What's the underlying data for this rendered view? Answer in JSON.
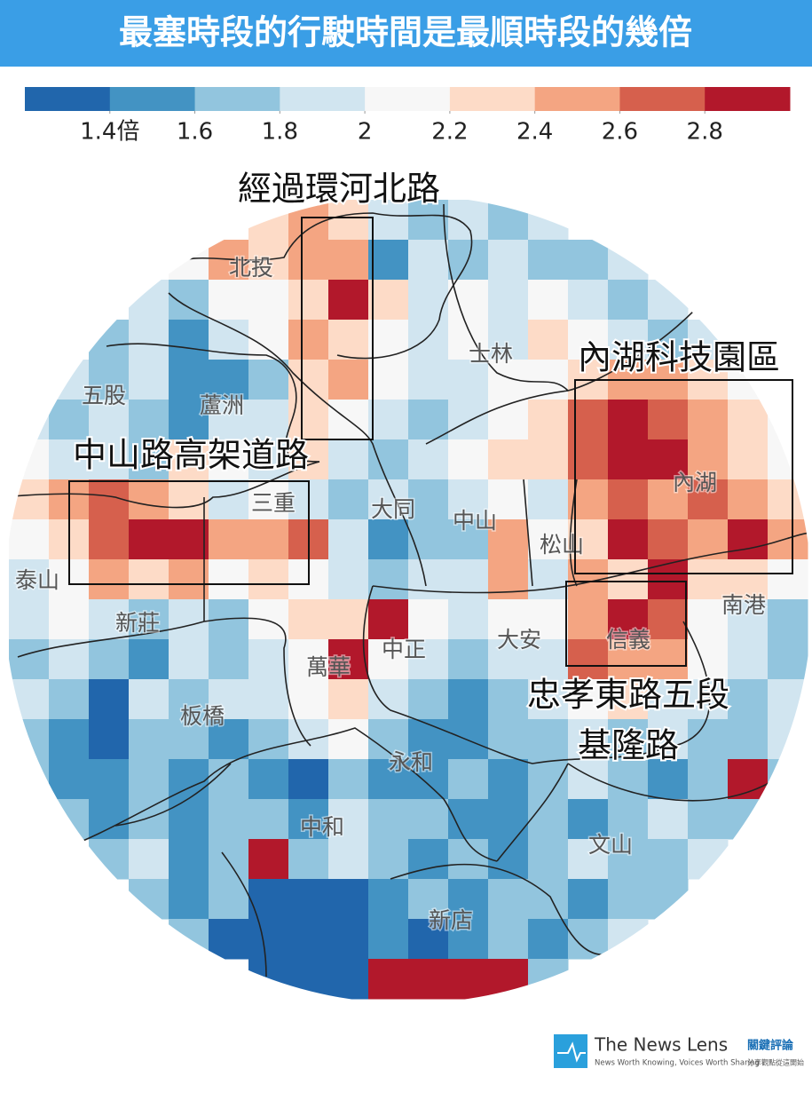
{
  "title": "最塞時段的行駛時間是最順時段的幾倍",
  "legend": {
    "colors": [
      "#2166ac",
      "#4393c3",
      "#92c5de",
      "#d1e5f0",
      "#f7f7f7",
      "#fddbc7",
      "#f4a582",
      "#d6604d",
      "#b2182b"
    ],
    "ticks": [
      {
        "value": 1.4,
        "label": "1.4倍"
      },
      1.6,
      1.8,
      2,
      2.2,
      2.4,
      2.6,
      2.8
    ]
  },
  "map": {
    "rows": [
      [
        null,
        null,
        null,
        null,
        null,
        null,
        2.3,
        2.5,
        2.3,
        1.9,
        1.7,
        1.9,
        1.7,
        1.9,
        null,
        null,
        null,
        null,
        null,
        null
      ],
      [
        null,
        null,
        null,
        null,
        2.1,
        2.5,
        2.3,
        2.5,
        2.5,
        1.5,
        1.9,
        1.7,
        1.9,
        1.7,
        1.7,
        1.9,
        null,
        null,
        null,
        null
      ],
      [
        null,
        null,
        null,
        1.9,
        1.7,
        2.1,
        2.1,
        2.3,
        2.9,
        2.3,
        1.9,
        2.1,
        1.9,
        2.1,
        1.9,
        1.7,
        1.9,
        null,
        null,
        null
      ],
      [
        null,
        null,
        1.7,
        1.9,
        1.5,
        1.9,
        2.1,
        2.5,
        2.3,
        2.1,
        1.9,
        2.1,
        1.9,
        2.3,
        2.1,
        1.9,
        1.7,
        1.9,
        null,
        null
      ],
      [
        null,
        1.9,
        1.7,
        1.9,
        1.5,
        1.5,
        1.7,
        2.3,
        2.5,
        2.1,
        1.9,
        1.9,
        2.1,
        2.1,
        2.3,
        2.5,
        2.5,
        2.3,
        2.1,
        null
      ],
      [
        1.9,
        1.7,
        1.9,
        1.7,
        1.5,
        1.9,
        1.9,
        2.3,
        2.1,
        1.9,
        1.7,
        1.9,
        2.1,
        2.3,
        2.7,
        2.9,
        2.7,
        2.5,
        2.3,
        2.1
      ],
      [
        2.1,
        1.9,
        1.9,
        1.7,
        2.3,
        2.1,
        1.9,
        2.3,
        1.9,
        1.7,
        1.9,
        2.1,
        2.3,
        2.3,
        2.7,
        2.9,
        2.9,
        2.5,
        2.3,
        2.1
      ],
      [
        2.3,
        2.5,
        2.7,
        2.5,
        2.3,
        1.9,
        2.1,
        1.9,
        1.7,
        1.9,
        1.7,
        1.9,
        2.1,
        1.9,
        2.5,
        2.7,
        2.5,
        2.7,
        2.5,
        2.3
      ],
      [
        2.1,
        2.3,
        2.7,
        2.9,
        2.9,
        2.5,
        2.5,
        2.7,
        1.9,
        1.5,
        1.7,
        1.7,
        2.5,
        2.1,
        2.3,
        2.9,
        2.7,
        2.5,
        2.9,
        2.5
      ],
      [
        1.9,
        2.1,
        2.5,
        2.3,
        2.5,
        2.1,
        2.3,
        2.1,
        1.9,
        1.7,
        1.9,
        1.9,
        2.5,
        1.9,
        2.5,
        2.3,
        2.9,
        2.3,
        2.3,
        2.1
      ],
      [
        1.9,
        2.1,
        1.9,
        1.7,
        1.9,
        1.7,
        2.1,
        2.3,
        2.3,
        2.9,
        2.1,
        1.9,
        2.1,
        2.1,
        2.5,
        2.9,
        2.7,
        2.1,
        1.9,
        1.7
      ],
      [
        1.7,
        1.9,
        1.7,
        1.5,
        1.9,
        1.7,
        1.9,
        2.1,
        2.9,
        2.1,
        1.9,
        1.7,
        1.9,
        1.9,
        2.7,
        2.5,
        2.5,
        2.1,
        1.9,
        1.7
      ],
      [
        1.9,
        1.7,
        1.3,
        1.9,
        1.7,
        1.9,
        1.9,
        2.1,
        2.3,
        1.9,
        1.7,
        1.5,
        1.7,
        1.9,
        2.1,
        2.3,
        1.9,
        1.9,
        1.7,
        1.9
      ],
      [
        1.7,
        1.5,
        1.3,
        1.7,
        1.7,
        1.5,
        1.7,
        1.9,
        2.1,
        1.7,
        1.5,
        1.5,
        1.7,
        1.7,
        1.9,
        1.7,
        1.9,
        1.7,
        1.7,
        1.9
      ],
      [
        1.7,
        1.5,
        1.5,
        1.7,
        1.5,
        1.7,
        1.5,
        1.3,
        1.7,
        1.5,
        1.5,
        1.7,
        1.5,
        1.7,
        1.9,
        1.7,
        1.5,
        1.7,
        2.9,
        1.7
      ],
      [
        null,
        1.7,
        1.5,
        1.7,
        1.5,
        1.7,
        1.7,
        1.5,
        1.9,
        1.7,
        1.7,
        1.5,
        1.5,
        1.7,
        1.5,
        1.7,
        1.9,
        1.7,
        1.7,
        null
      ],
      [
        null,
        null,
        1.7,
        1.9,
        1.5,
        1.7,
        2.9,
        1.7,
        1.9,
        1.7,
        1.5,
        1.7,
        1.5,
        1.7,
        1.9,
        1.7,
        1.7,
        1.9,
        null,
        null
      ],
      [
        null,
        null,
        null,
        1.7,
        1.5,
        1.7,
        1.3,
        1.3,
        1.3,
        1.5,
        1.7,
        1.5,
        1.7,
        1.7,
        1.5,
        1.7,
        1.7,
        null,
        null,
        null
      ],
      [
        null,
        null,
        null,
        null,
        1.7,
        1.3,
        1.3,
        1.3,
        1.3,
        1.5,
        1.3,
        1.5,
        1.7,
        1.5,
        1.7,
        1.9,
        null,
        null,
        null,
        null
      ],
      [
        null,
        null,
        null,
        null,
        null,
        null,
        1.3,
        1.3,
        1.3,
        2.9,
        2.9,
        2.9,
        2.9,
        1.7,
        null,
        null,
        null,
        null,
        null,
        null
      ]
    ]
  },
  "districts": [
    "北投",
    "士林",
    "五股",
    "蘆洲",
    "三重",
    "大同",
    "中山",
    "松山",
    "內湖",
    "泰山",
    "新莊",
    "萬華",
    "中正",
    "大安",
    "信義",
    "南港",
    "板橋",
    "永和",
    "中和",
    "文山",
    "新店"
  ],
  "annotations": [
    "經過環河北路",
    "內湖科技園區",
    "中山路高架道路",
    "忠孝東路五段",
    "基隆路"
  ],
  "footer": {
    "brand": "The News Lens",
    "brand_zh": "關鍵評論",
    "slogan": "News Worth Knowing, Voices Worth Sharing",
    "slogan_zh": "分享觀點從這開始"
  }
}
